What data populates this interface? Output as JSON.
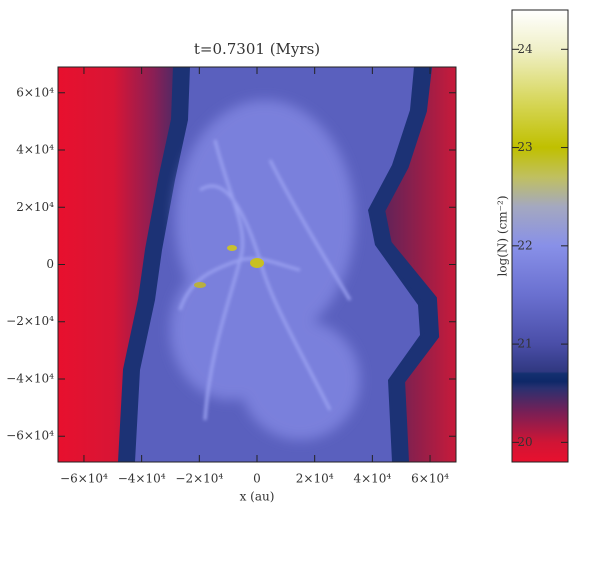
{
  "chart_data": {
    "type": "image",
    "title": "t=0.7301 (Myrs)",
    "x_label": "x (au)",
    "xlim": [
      -69000,
      69000
    ],
    "ylim": [
      -69000,
      69000
    ],
    "xticks": [
      {
        "value": -60000,
        "label": "−6×10⁴"
      },
      {
        "value": -40000,
        "label": "−4×10⁴"
      },
      {
        "value": -20000,
        "label": "−2×10⁴"
      },
      0,
      {
        "value": 20000,
        "label": "2×10⁴"
      },
      {
        "value": 40000,
        "label": "4×10⁴"
      },
      {
        "value": 60000,
        "label": "6×10⁴"
      }
    ],
    "yticks": [
      {
        "value": -60000,
        "label": "−6×10⁴"
      },
      {
        "value": -40000,
        "label": "−4×10⁴"
      },
      {
        "value": -20000,
        "label": "−2×10⁴"
      },
      0,
      {
        "value": 20000,
        "label": "2×10⁴"
      },
      {
        "value": 40000,
        "label": "4×10⁴"
      },
      {
        "value": 60000,
        "label": "6×10⁴"
      }
    ],
    "colorbar": {
      "label": "log(N) (cm⁻²)",
      "clim": [
        19.8,
        24.4
      ],
      "ticks": [
        20,
        21,
        22,
        23,
        24
      ],
      "colormap": [
        [
          19.8,
          "#e8102e"
        ],
        [
          20.0,
          "#d01535"
        ],
        [
          20.3,
          "#7a1f55"
        ],
        [
          20.55,
          "#2a3070"
        ],
        [
          20.62,
          "#0e2868"
        ],
        [
          20.7,
          "#143070"
        ],
        [
          20.72,
          "#303880"
        ],
        [
          21.0,
          "#4a4ea8"
        ],
        [
          21.5,
          "#6a70d0"
        ],
        [
          22.0,
          "#8890e8"
        ],
        [
          22.4,
          "#a4a8c0"
        ],
        [
          22.7,
          "#c0c060"
        ],
        [
          23.0,
          "#c0c000"
        ],
        [
          23.5,
          "#d8d860"
        ],
        [
          24.0,
          "#f0f0c8"
        ],
        [
          24.4,
          "#ffffff"
        ]
      ]
    }
  }
}
